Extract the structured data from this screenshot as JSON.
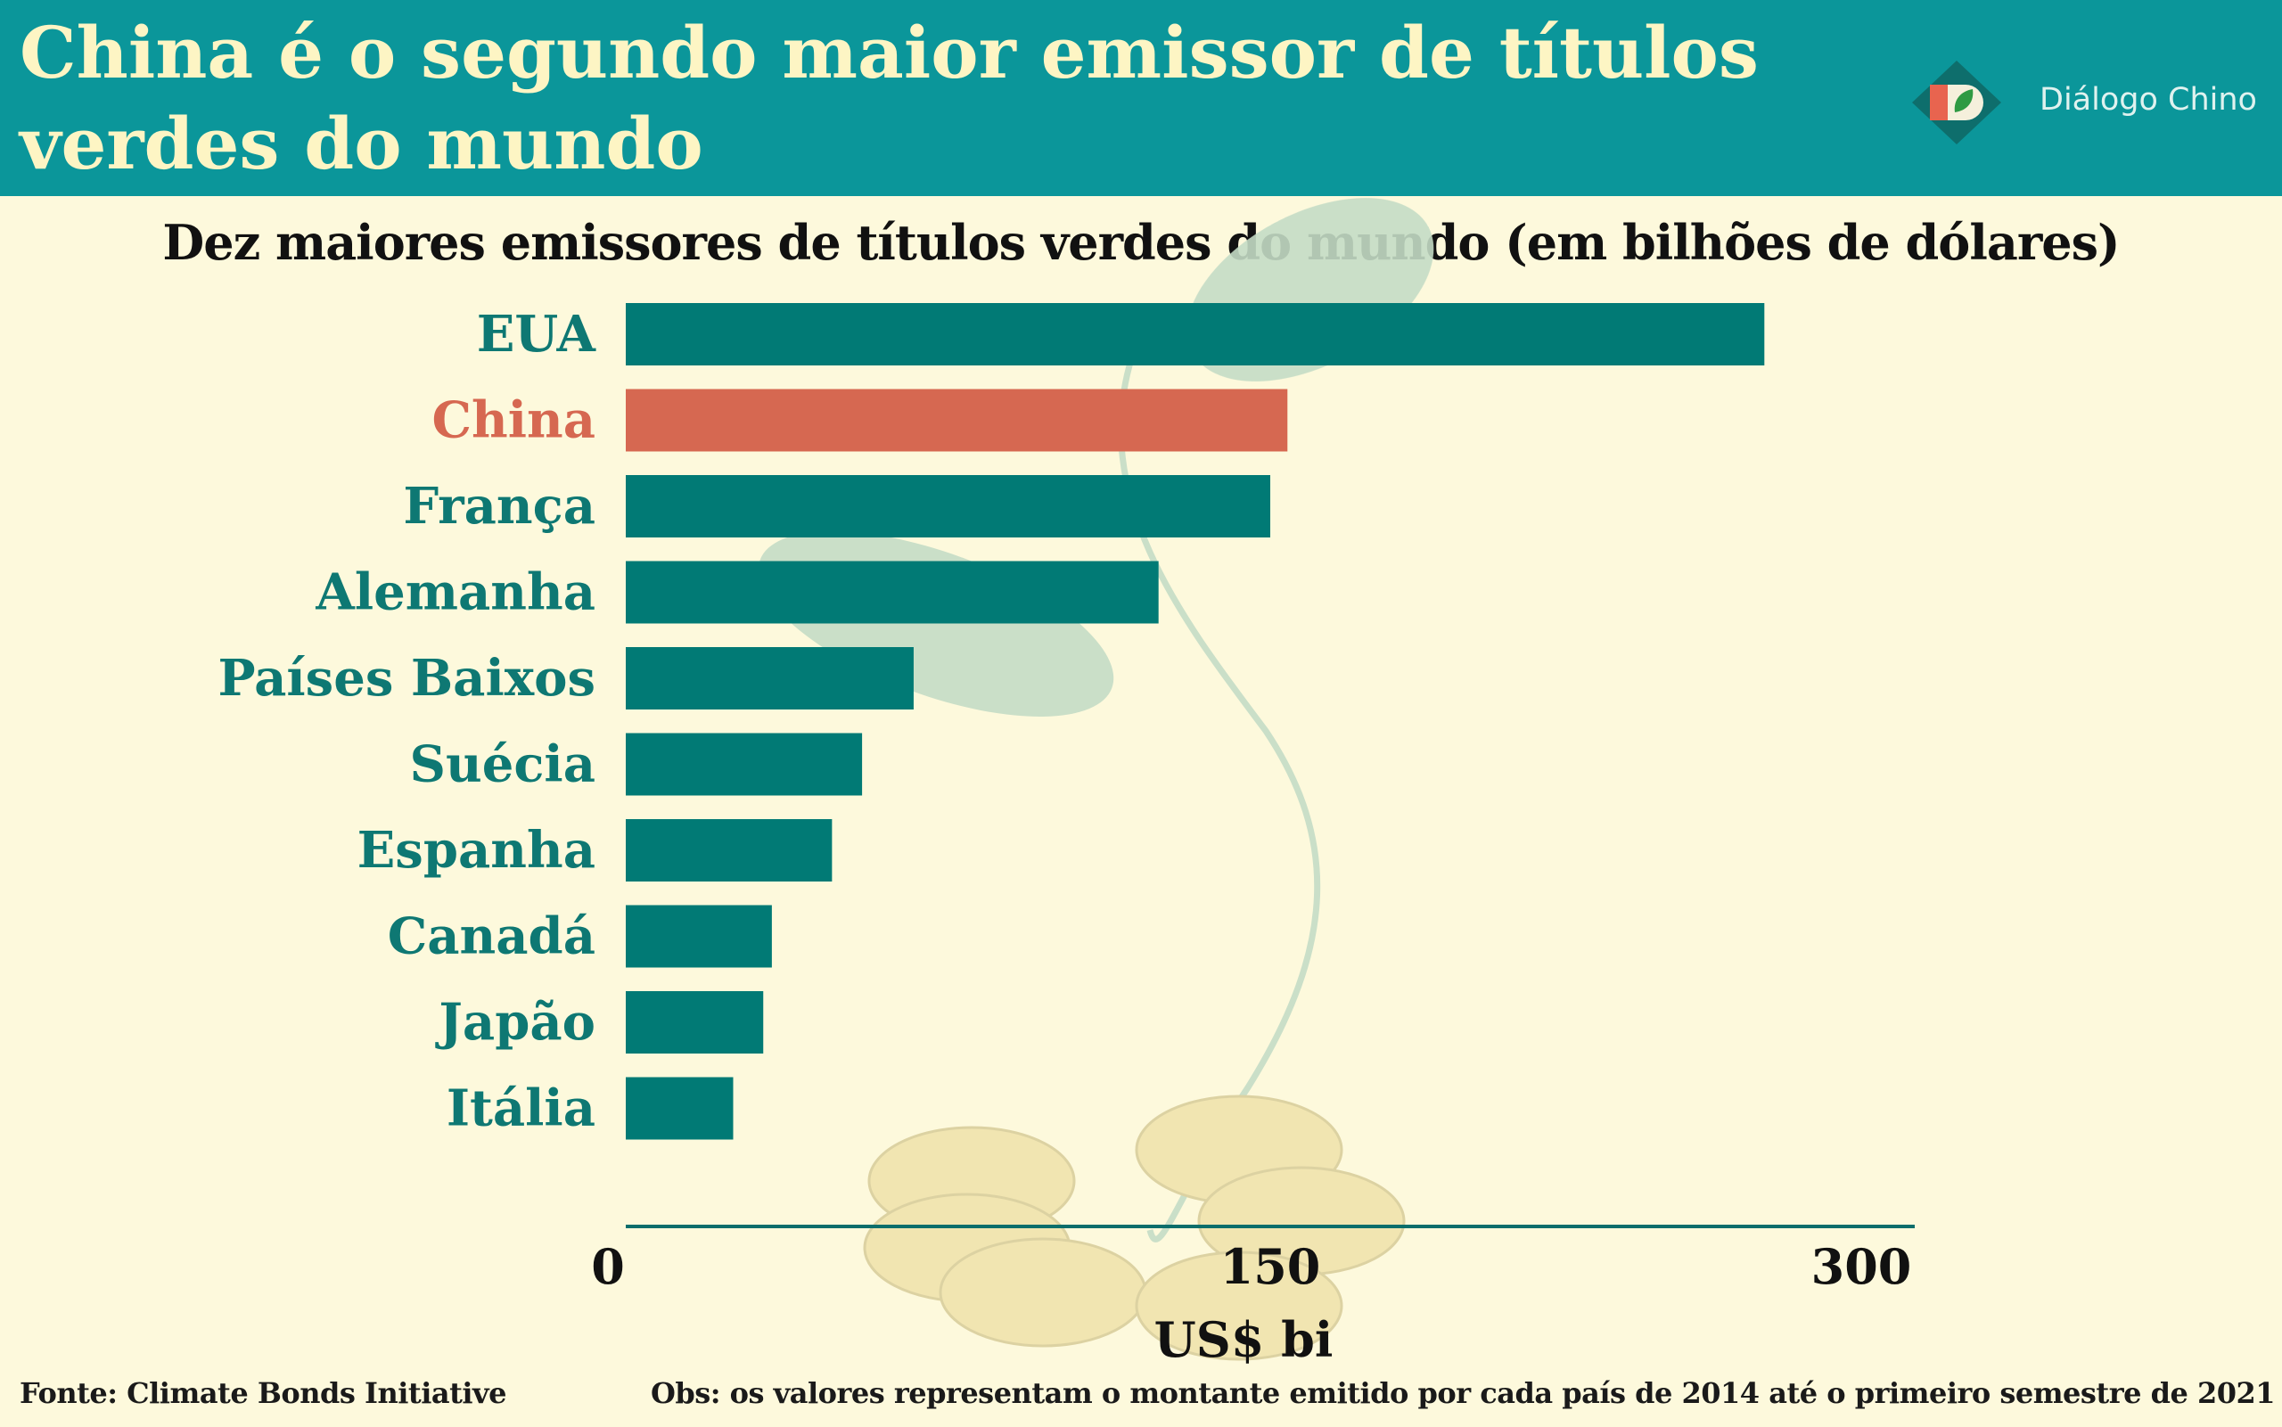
{
  "header": {
    "title": "China é o segundo maior emissor de títulos verdes do mundo",
    "logo_text": "Diálogo Chino",
    "colors": {
      "header_bg": "#0b969a",
      "title": "#fdf5c4"
    }
  },
  "chart_data": {
    "type": "bar",
    "orientation": "horizontal",
    "title": "Dez maiores emissores de títulos verdes do mundo (em bilhões de dólares)",
    "xlabel": "US$ bi",
    "ylabel": "",
    "categories": [
      "EUA",
      "China",
      "França",
      "Alemanha",
      "Países Baixos",
      "Suécia",
      "Espanha",
      "Canadá",
      "Japão",
      "Itália"
    ],
    "values": [
      265,
      154,
      150,
      124,
      67,
      55,
      48,
      34,
      32,
      25
    ],
    "highlight": "China",
    "xlim": [
      0,
      300
    ],
    "xticks": [
      0,
      150,
      300
    ],
    "grid": false,
    "legend": "none",
    "colors": {
      "bar": "#017a75",
      "highlight": "#d66851",
      "label": "#0e7873",
      "highlight_label": "#d66851"
    }
  },
  "footer": {
    "source": "Fonte: Climate Bonds Initiative",
    "note": "Obs: os valores representam o montante emitido por cada país de 2014 até o primeiro semestre de 2021"
  }
}
